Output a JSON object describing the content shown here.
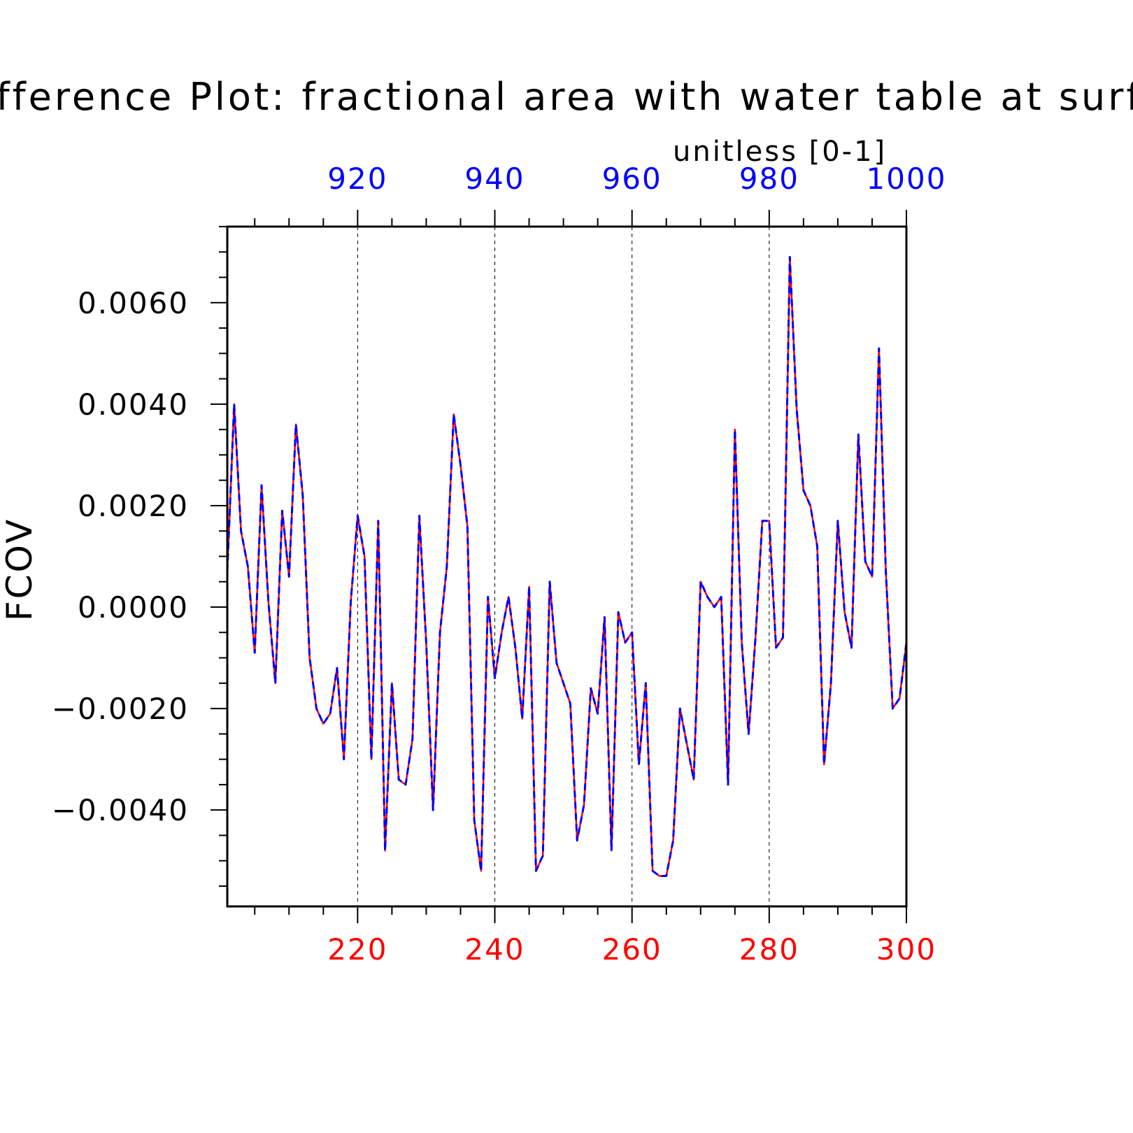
{
  "chart_data": {
    "type": "line",
    "title": "Difference Plot: fractional area with water table at surface",
    "units_label": "unitless [0-1]",
    "ylabel": "FCOV",
    "xlim": [
      201,
      300
    ],
    "ylim": [
      -0.0059,
      0.0075
    ],
    "x_ticks": [
      220,
      240,
      260,
      280,
      300
    ],
    "x_tick_labels": [
      "220",
      "240",
      "260",
      "280",
      "300"
    ],
    "top_ticks": [
      920,
      940,
      960,
      980,
      1000
    ],
    "top_tick_labels": [
      "920",
      "940",
      "960",
      "980",
      "1000"
    ],
    "top_axis_offset": 700,
    "y_ticks": [
      -0.004,
      -0.002,
      0.0,
      0.002,
      0.004,
      0.006
    ],
    "y_tick_labels": [
      "−0.0040",
      "−0.0020",
      "0.0000",
      "0.0020",
      "0.0040",
      "0.0060"
    ],
    "grid": "vertical dashed at major x ticks",
    "colors": {
      "series_1": "#ff0000",
      "series_2": "#0000ff",
      "bottom_ticks": "#ff0000",
      "top_ticks": "#0000ff",
      "axes": "#000000"
    },
    "x": [
      201,
      202,
      203,
      204,
      205,
      206,
      207,
      208,
      209,
      210,
      211,
      212,
      213,
      214,
      215,
      216,
      217,
      218,
      219,
      220,
      221,
      222,
      223,
      224,
      225,
      226,
      227,
      228,
      229,
      230,
      231,
      232,
      233,
      234,
      235,
      236,
      237,
      238,
      239,
      240,
      241,
      242,
      243,
      244,
      245,
      246,
      247,
      248,
      249,
      250,
      251,
      252,
      253,
      254,
      255,
      256,
      257,
      258,
      259,
      260,
      261,
      262,
      263,
      264,
      265,
      266,
      267,
      268,
      269,
      270,
      271,
      272,
      273,
      274,
      275,
      276,
      277,
      278,
      279,
      280,
      281,
      282,
      283,
      284,
      285,
      286,
      287,
      288,
      289,
      290,
      291,
      292,
      293,
      294,
      295,
      296,
      297,
      298,
      299,
      300
    ],
    "series": [
      {
        "values": [
          0.0007,
          0.004,
          0.0015,
          0.0008,
          -0.0009,
          0.0024,
          0.0001,
          -0.0015,
          0.0019,
          0.0006,
          0.0036,
          0.0022,
          -0.001,
          -0.002,
          -0.0023,
          -0.0021,
          -0.0012,
          -0.003,
          0.0001,
          0.0018,
          0.001,
          -0.003,
          0.0017,
          -0.0048,
          -0.0015,
          -0.0034,
          -0.0035,
          -0.0026,
          0.0018,
          -0.0007,
          -0.004,
          -0.0005,
          0.0008,
          0.0038,
          0.0028,
          0.0016,
          -0.0042,
          -0.0052,
          0.0002,
          -0.0014,
          -0.0005,
          0.0002,
          -0.0008,
          -0.0022,
          0.0004,
          -0.0052,
          -0.0049,
          0.0005,
          -0.0011,
          -0.0015,
          -0.0019,
          -0.0046,
          -0.0039,
          -0.0016,
          -0.0021,
          -0.0002,
          -0.0048,
          -0.0001,
          -0.0007,
          -0.0005,
          -0.0031,
          -0.0015,
          -0.0052,
          -0.0053,
          -0.0053,
          -0.0046,
          -0.002,
          -0.0027,
          -0.0034,
          0.0005,
          0.0002,
          0.0,
          0.0002,
          -0.0035,
          0.0035,
          -0.0007,
          -0.0025,
          -0.0006,
          0.0017,
          0.0017,
          -0.0008,
          -0.0006,
          0.0069,
          0.0039,
          0.0023,
          0.002,
          0.0012,
          -0.0031,
          -0.0015,
          0.0017,
          -0.0001,
          -0.0008,
          0.0034,
          0.0009,
          0.0006,
          0.0051,
          0.0007,
          -0.002,
          -0.0018,
          -0.0007
        ]
      },
      {
        "values": [
          0.0007,
          0.004,
          0.0015,
          0.0008,
          -0.0009,
          0.0024,
          0.0001,
          -0.0015,
          0.0019,
          0.0006,
          0.0036,
          0.0022,
          -0.001,
          -0.002,
          -0.0023,
          -0.0021,
          -0.0012,
          -0.003,
          0.0001,
          0.0018,
          0.001,
          -0.003,
          0.0017,
          -0.0048,
          -0.0015,
          -0.0034,
          -0.0035,
          -0.0026,
          0.0018,
          -0.0007,
          -0.004,
          -0.0005,
          0.0008,
          0.0038,
          0.0028,
          0.0016,
          -0.0042,
          -0.0052,
          0.0002,
          -0.0014,
          -0.0005,
          0.0002,
          -0.0008,
          -0.0022,
          0.0004,
          -0.0052,
          -0.0049,
          0.0005,
          -0.0011,
          -0.0015,
          -0.0019,
          -0.0046,
          -0.0039,
          -0.0016,
          -0.0021,
          -0.0002,
          -0.0048,
          -0.0001,
          -0.0007,
          -0.0005,
          -0.0031,
          -0.0015,
          -0.0052,
          -0.0053,
          -0.0053,
          -0.0046,
          -0.002,
          -0.0027,
          -0.0034,
          0.0005,
          0.0002,
          0.0,
          0.0002,
          -0.0035,
          0.0035,
          -0.0007,
          -0.0025,
          -0.0006,
          0.0017,
          0.0017,
          -0.0008,
          -0.0006,
          0.0069,
          0.0039,
          0.0023,
          0.002,
          0.0012,
          -0.0031,
          -0.0015,
          0.0017,
          -0.0001,
          -0.0008,
          0.0034,
          0.0009,
          0.0006,
          0.0051,
          0.0007,
          -0.002,
          -0.0018,
          -0.0007
        ]
      }
    ]
  }
}
